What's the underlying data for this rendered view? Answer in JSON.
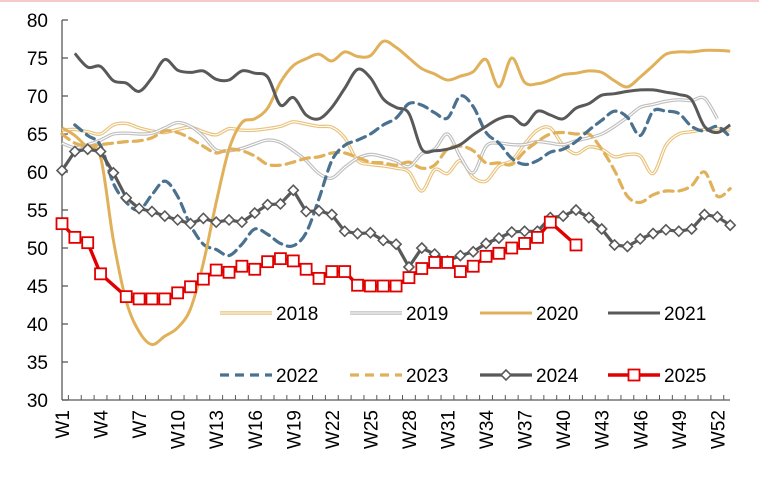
{
  "chart_data": {
    "type": "line",
    "title": "",
    "xlabel": "",
    "ylabel": "",
    "ylim": [
      30,
      80
    ],
    "yticks": [
      30,
      35,
      40,
      45,
      50,
      55,
      60,
      65,
      70,
      75,
      80
    ],
    "x": [
      "W1",
      "W2",
      "W3",
      "W4",
      "W5",
      "W6",
      "W7",
      "W8",
      "W9",
      "W10",
      "W11",
      "W12",
      "W13",
      "W14",
      "W15",
      "W16",
      "W17",
      "W18",
      "W19",
      "W20",
      "W21",
      "W22",
      "W23",
      "W24",
      "W25",
      "W26",
      "W27",
      "W28",
      "W29",
      "W30",
      "W31",
      "W32",
      "W33",
      "W34",
      "W35",
      "W36",
      "W37",
      "W38",
      "W39",
      "W40",
      "W41",
      "W42",
      "W43",
      "W44",
      "W45",
      "W46",
      "W47",
      "W48",
      "W49",
      "W50",
      "W51",
      "W52",
      "W53"
    ],
    "xtick_labels": [
      "W1",
      "W4",
      "W7",
      "W10",
      "W13",
      "W16",
      "W19",
      "W22",
      "W25",
      "W28",
      "W31",
      "W34",
      "W37",
      "W40",
      "W43",
      "W46",
      "W49",
      "W52"
    ],
    "grid": false,
    "legend_position": "bottom-right-inside",
    "series": [
      {
        "name": "2018",
        "style": "double",
        "color": "#e8c27a",
        "values": [
          65.5,
          65.6,
          65.3,
          65.0,
          66.2,
          66.4,
          65.8,
          65.4,
          65.2,
          65.6,
          65.9,
          65.3,
          64.9,
          65.7,
          65.5,
          65.5,
          65.7,
          66.0,
          66.6,
          66.3,
          66.0,
          65.9,
          64.5,
          61.5,
          61.0,
          60.8,
          60.5,
          60.0,
          57.5,
          60.3,
          59.8,
          61.5,
          59.3,
          58.8,
          60.8,
          61.5,
          63.7,
          65.5,
          65.8,
          63.5,
          62.4,
          63.3,
          63.0,
          62.0,
          62.3,
          62.1,
          59.8,
          63.5,
          65.0,
          65.3,
          65.6,
          65.7,
          65.5
        ]
      },
      {
        "name": "2019",
        "style": "double",
        "color": "#bfbfbf",
        "values": [
          63.8,
          63.2,
          63.6,
          64.2,
          65.0,
          65.1,
          65.0,
          65.1,
          65.8,
          66.5,
          66.0,
          64.7,
          62.9,
          62.8,
          63.1,
          63.7,
          64.2,
          63.9,
          62.8,
          61.5,
          59.8,
          59.2,
          60.6,
          61.8,
          62.3,
          62.0,
          61.5,
          60.7,
          62.4,
          63.0,
          65.0,
          62.0,
          59.9,
          63.4,
          63.8,
          63.6,
          63.6,
          64.0,
          63.8,
          63.6,
          64.1,
          64.5,
          65.0,
          66.0,
          67.2,
          68.5,
          68.9,
          69.3,
          69.5,
          69.4,
          69.7,
          67.0,
          null
        ]
      },
      {
        "name": "2020",
        "style": "solid",
        "color": "#e0b15a",
        "values": [
          65.8,
          64.8,
          63.2,
          62.0,
          51.0,
          43.0,
          39.0,
          37.3,
          38.4,
          39.5,
          42.0,
          48.0,
          56.0,
          63.0,
          66.5,
          67.0,
          68.4,
          71.8,
          74.0,
          74.9,
          75.5,
          74.6,
          75.8,
          75.2,
          75.3,
          77.2,
          76.4,
          75.0,
          73.6,
          72.9,
          72.1,
          72.6,
          73.2,
          74.8,
          71.2,
          75.0,
          71.8,
          71.6,
          72.1,
          72.8,
          73.0,
          73.3,
          73.1,
          72.0,
          71.2,
          72.5,
          74.0,
          75.5,
          75.8,
          75.8,
          76.0,
          76.0,
          75.9
        ]
      },
      {
        "name": "2021",
        "style": "solid",
        "color": "#595959",
        "values": [
          null,
          75.6,
          73.8,
          73.9,
          72.0,
          71.7,
          70.6,
          72.4,
          74.8,
          73.4,
          73.1,
          73.3,
          72.2,
          72.1,
          73.3,
          73.0,
          72.5,
          68.8,
          69.8,
          67.5,
          67.0,
          68.5,
          71.0,
          73.5,
          72.4,
          69.6,
          68.5,
          67.7,
          63.0,
          62.8,
          63.0,
          63.6,
          64.9,
          66.0,
          67.0,
          67.3,
          66.2,
          68.0,
          67.5,
          67.0,
          68.4,
          69.0,
          70.1,
          70.3,
          70.6,
          70.8,
          70.8,
          70.5,
          70.2,
          69.5,
          66.0,
          65.2,
          66.2
        ]
      },
      {
        "name": "2022",
        "style": "dashed",
        "color": "#4a7190",
        "values": [
          null,
          66.2,
          64.8,
          63.5,
          58.5,
          56.0,
          55.0,
          57.0,
          58.8,
          56.8,
          53.0,
          50.5,
          49.8,
          49.0,
          50.5,
          52.5,
          51.8,
          50.6,
          50.3,
          52.0,
          56.5,
          61.5,
          63.5,
          64.2,
          65.0,
          66.2,
          67.1,
          69.0,
          68.8,
          67.8,
          67.1,
          70.0,
          68.6,
          65.2,
          63.8,
          61.8,
          61.0,
          61.5,
          62.6,
          63.0,
          64.0,
          65.5,
          66.8,
          68.0,
          67.2,
          64.8,
          68.0,
          68.0,
          67.7,
          66.0,
          65.4,
          66.0,
          64.6
        ]
      },
      {
        "name": "2023",
        "style": "dashed",
        "color": "#e0b15a",
        "values": [
          65.0,
          63.8,
          63.4,
          63.6,
          63.8,
          64.0,
          64.1,
          64.5,
          65.4,
          65.2,
          64.4,
          63.4,
          62.5,
          63.0,
          62.8,
          62.1,
          61.0,
          60.9,
          61.3,
          61.8,
          62.0,
          62.5,
          62.5,
          61.9,
          61.3,
          61.2,
          60.9,
          61.3,
          60.5,
          60.9,
          63.0,
          63.4,
          62.8,
          61.2,
          61.2,
          61.0,
          62.7,
          64.0,
          65.0,
          65.2,
          65.0,
          65.0,
          63.0,
          60.2,
          56.8,
          56.0,
          57.0,
          57.5,
          57.5,
          58.2,
          60.0,
          56.8,
          57.8
        ]
      },
      {
        "name": "2024",
        "style": "diamond",
        "color": "#595959",
        "values": [
          60.2,
          62.7,
          63.0,
          62.7,
          59.9,
          56.6,
          55.2,
          54.8,
          54.2,
          53.7,
          53.2,
          53.9,
          53.4,
          53.7,
          53.4,
          54.6,
          55.7,
          55.8,
          57.6,
          54.8,
          54.9,
          54.4,
          52.2,
          51.9,
          52.0,
          51.0,
          50.5,
          47.5,
          50.0,
          49.2,
          48.3,
          49.0,
          49.5,
          50.6,
          51.3,
          52.1,
          52.2,
          52.2,
          54.0,
          54.2,
          55.0,
          54.0,
          52.5,
          50.4,
          50.2,
          51.2,
          51.9,
          52.4,
          52.2,
          52.5,
          54.4,
          54.1,
          53.0
        ]
      },
      {
        "name": "2025",
        "style": "square",
        "color": "#e00000",
        "values": [
          53.2,
          51.4,
          50.7,
          46.6,
          null,
          43.6,
          43.3,
          43.3,
          43.3,
          44.1,
          44.9,
          45.9,
          47.1,
          46.8,
          47.6,
          47.2,
          48.2,
          48.6,
          48.3,
          47.2,
          46.0,
          46.9,
          46.9,
          45.1,
          45.0,
          45.0,
          45.0,
          46.1,
          47.3,
          48.1,
          48.1,
          46.9,
          47.6,
          48.9,
          49.3,
          50.0,
          50.6,
          51.4,
          53.4,
          null,
          50.4
        ]
      }
    ]
  }
}
